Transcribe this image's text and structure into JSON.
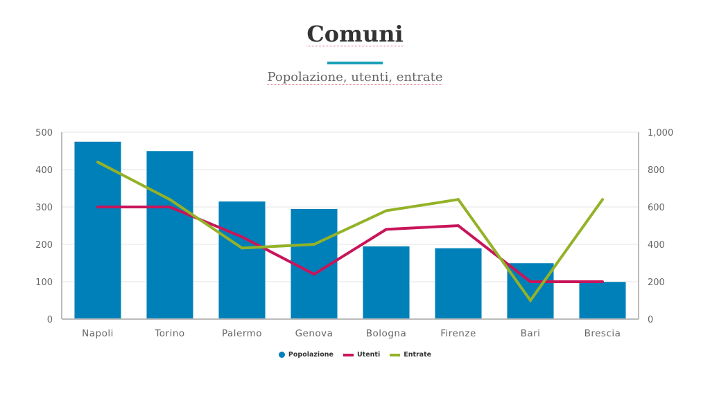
{
  "header": {
    "title": "Comuni",
    "subtitle": "Popolazione, utenti, entrate",
    "accent_color": "#1aa0b8"
  },
  "chart_data": {
    "type": "bar",
    "title": "Comuni",
    "subtitle": "Popolazione, utenti, entrate",
    "categories": [
      "Napoli",
      "Torino",
      "Palermo",
      "Genova",
      "Bologna",
      "Firenze",
      "Bari",
      "Brescia"
    ],
    "series": [
      {
        "name": "Popolazione",
        "type": "bar",
        "axis": "left",
        "color": "#0080b8",
        "values": [
          475,
          450,
          315,
          295,
          195,
          190,
          150,
          100
        ]
      },
      {
        "name": "Utenti",
        "type": "line",
        "axis": "right",
        "color": "#c8155a",
        "values": [
          600,
          600,
          440,
          240,
          480,
          500,
          200,
          200
        ]
      },
      {
        "name": "Entrate",
        "type": "line",
        "axis": "right",
        "color": "#94b228",
        "values": [
          840,
          640,
          380,
          400,
          580,
          640,
          100,
          640
        ]
      }
    ],
    "y_left": {
      "ticks": [
        "0",
        "100",
        "200",
        "300",
        "400",
        "500"
      ],
      "ylim": [
        0,
        500
      ]
    },
    "y_right": {
      "ticks": [
        "0",
        "200",
        "400",
        "600",
        "800",
        "1,000"
      ],
      "ylim": [
        0,
        1000
      ]
    },
    "xlabel": "",
    "ylabel": "",
    "grid": true,
    "legend_position": "bottom"
  },
  "legend": {
    "items": [
      {
        "label": "Popolazione",
        "color": "#0080b8",
        "shape": "dot"
      },
      {
        "label": "Utenti",
        "color": "#c8155a",
        "shape": "line"
      },
      {
        "label": "Entrate",
        "color": "#94b228",
        "shape": "line"
      }
    ]
  }
}
